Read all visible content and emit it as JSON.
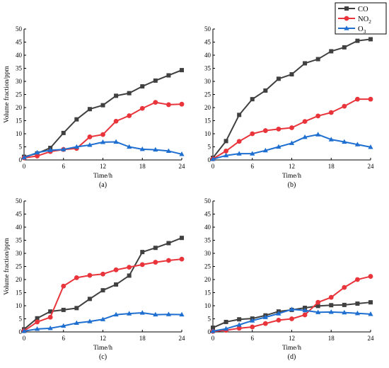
{
  "legend": {
    "items": [
      {
        "label": "CO",
        "sub": "",
        "color": "#404040",
        "marker": "square"
      },
      {
        "label": "NO",
        "sub": "2",
        "color": "#e8343a",
        "marker": "circle"
      },
      {
        "label": "O",
        "sub": "3",
        "color": "#1f6fd1",
        "marker": "triangle"
      }
    ]
  },
  "chart_data": [
    {
      "type": "line",
      "panel_label": "(a)",
      "xlabel": "Time/h",
      "ylabel": "Volume fraction/ppm",
      "xlim": [
        0,
        24
      ],
      "ylim": [
        0,
        50
      ],
      "xticks": [
        0,
        6,
        12,
        18,
        24
      ],
      "yticks": [
        0,
        5,
        10,
        15,
        20,
        25,
        30,
        35,
        40,
        45,
        50
      ],
      "x": [
        0,
        2,
        4,
        6,
        8,
        10,
        12,
        14,
        16,
        18,
        20,
        22,
        24
      ],
      "series": [
        {
          "name": "CO",
          "values": [
            1.2,
            2.5,
            4.6,
            10.3,
            15.5,
            19.4,
            20.9,
            24.5,
            25.5,
            28.1,
            30.3,
            32.3,
            34.3
          ]
        },
        {
          "name": "NO2",
          "values": [
            0.8,
            1.5,
            3.2,
            4.0,
            4.4,
            8.8,
            9.7,
            14.8,
            16.9,
            19.7,
            22.0,
            21.1,
            21.3
          ]
        },
        {
          "name": "O3",
          "values": [
            0.9,
            2.8,
            3.7,
            4.0,
            5.0,
            5.7,
            6.8,
            6.9,
            5.0,
            4.1,
            3.9,
            3.4,
            2.2
          ]
        }
      ]
    },
    {
      "type": "line",
      "panel_label": "(b)",
      "xlabel": "Time/h",
      "ylabel": "",
      "xlim": [
        0,
        24
      ],
      "ylim": [
        0,
        50
      ],
      "xticks": [
        0,
        6,
        12,
        18,
        24
      ],
      "yticks": [
        0,
        5,
        10,
        15,
        20,
        25,
        30,
        35,
        40,
        45,
        50
      ],
      "x": [
        0,
        2,
        4,
        6,
        8,
        10,
        12,
        14,
        16,
        18,
        20,
        22,
        24
      ],
      "series": [
        {
          "name": "CO",
          "values": [
            0.8,
            7.2,
            17.2,
            23.2,
            26.5,
            31.0,
            32.7,
            36.9,
            38.5,
            41.5,
            43.0,
            45.5,
            46.1
          ]
        },
        {
          "name": "NO2",
          "values": [
            0.4,
            3.4,
            7.1,
            10.0,
            11.2,
            11.8,
            12.3,
            14.7,
            16.8,
            18.1,
            20.5,
            23.2,
            23.2
          ]
        },
        {
          "name": "O3",
          "values": [
            0.3,
            1.7,
            2.4,
            2.4,
            3.6,
            5.0,
            6.4,
            8.7,
            9.7,
            7.8,
            6.9,
            5.9,
            4.9
          ]
        }
      ]
    },
    {
      "type": "line",
      "panel_label": "(c)",
      "xlabel": "Time/h",
      "ylabel": "Volume fraction/ppm",
      "xlim": [
        0,
        24
      ],
      "ylim": [
        0,
        50
      ],
      "xticks": [
        0,
        6,
        12,
        18,
        24
      ],
      "yticks": [
        0,
        5,
        10,
        15,
        20,
        25,
        30,
        35,
        40,
        45,
        50
      ],
      "x": [
        0,
        2,
        4,
        6,
        8,
        10,
        12,
        14,
        16,
        18,
        20,
        22,
        24
      ],
      "series": [
        {
          "name": "CO",
          "values": [
            1.0,
            5.2,
            7.8,
            8.4,
            9.1,
            12.6,
            15.9,
            18.1,
            21.5,
            30.5,
            32.1,
            33.9,
            35.9
          ]
        },
        {
          "name": "NO2",
          "values": [
            0.4,
            3.8,
            5.6,
            17.5,
            20.7,
            21.6,
            22.1,
            23.7,
            24.7,
            25.7,
            26.6,
            27.3,
            27.8
          ]
        },
        {
          "name": "O3",
          "values": [
            0.3,
            1.1,
            1.4,
            2.3,
            3.4,
            4.0,
            4.8,
            6.6,
            7.0,
            7.3,
            6.6,
            6.7,
            6.6
          ]
        }
      ]
    },
    {
      "type": "line",
      "panel_label": "(d)",
      "xlabel": "Time/h",
      "ylabel": "",
      "xlim": [
        0,
        24
      ],
      "ylim": [
        0,
        50
      ],
      "xticks": [
        0,
        6,
        12,
        18,
        24
      ],
      "yticks": [
        0,
        5,
        10,
        15,
        20,
        25,
        30,
        35,
        40,
        45,
        50
      ],
      "x": [
        0,
        2,
        4,
        6,
        8,
        10,
        12,
        14,
        16,
        18,
        20,
        22,
        24
      ],
      "series": [
        {
          "name": "CO",
          "values": [
            1.6,
            3.8,
            4.8,
            5.1,
            6.3,
            7.8,
            8.4,
            9.2,
            9.9,
            10.2,
            10.3,
            10.8,
            11.3
          ]
        },
        {
          "name": "NO2",
          "values": [
            0.2,
            0.6,
            1.4,
            1.9,
            3.2,
            4.5,
            5.0,
            6.5,
            11.3,
            13.2,
            17.0,
            20.0,
            21.2
          ]
        },
        {
          "name": "O3",
          "values": [
            0.3,
            1.2,
            2.7,
            4.3,
            5.6,
            7.0,
            8.6,
            8.2,
            7.5,
            7.6,
            7.4,
            7.1,
            6.8
          ]
        }
      ]
    }
  ]
}
